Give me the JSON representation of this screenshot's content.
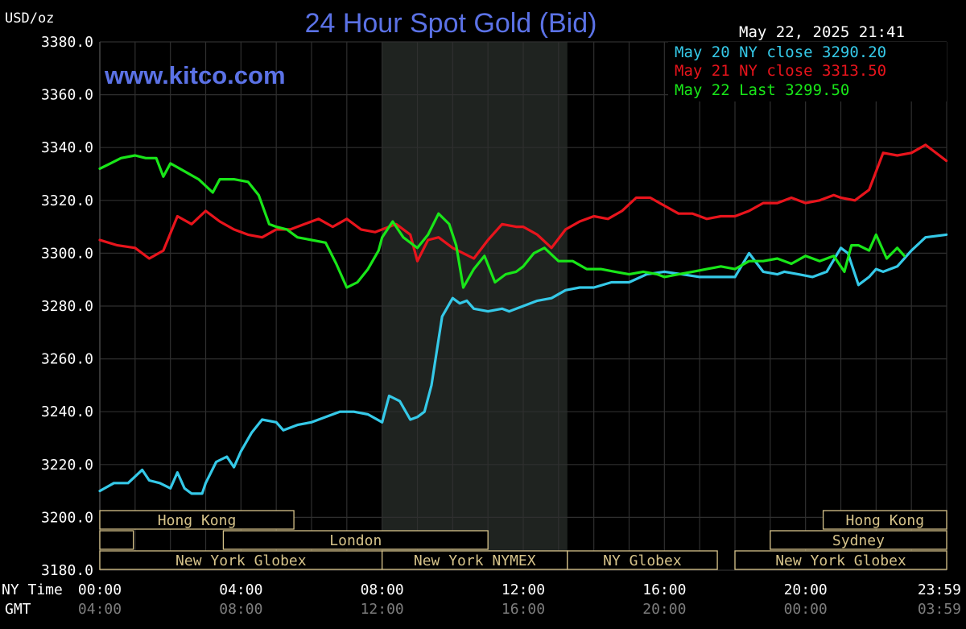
{
  "header": {
    "title": "24 Hour Spot Gold (Bid)",
    "unit": "USD/oz",
    "watermark": "www.kitco.com",
    "timestamp": "May 22, 2025 21:41"
  },
  "legend": {
    "placement": "top-right",
    "items": [
      {
        "text": "May 20 NY close 3290.20",
        "color": "#35c9e8"
      },
      {
        "text": "May 21 NY close 3313.50",
        "color": "#e8141c"
      },
      {
        "text": "May 22 Last 3299.50",
        "color": "#19e619"
      }
    ]
  },
  "axis": {
    "ny_time_label": "NY Time",
    "gmt_label": "GMT",
    "ny_ticks": [
      "00:00",
      "04:00",
      "08:00",
      "12:00",
      "16:00",
      "20:00",
      "23:59"
    ],
    "gmt_ticks": [
      "04:00",
      "08:00",
      "12:00",
      "16:00",
      "20:00",
      "00:00",
      "03:59"
    ],
    "y_ticks": [
      "3180.0",
      "3200.0",
      "3220.0",
      "3240.0",
      "3260.0",
      "3280.0",
      "3300.0",
      "3320.0",
      "3340.0",
      "3360.0",
      "3380.0"
    ]
  },
  "sessions": {
    "row1": [
      "Hong Kong",
      "Hong Kong"
    ],
    "row2": [
      "London",
      "Sydney"
    ],
    "row3": [
      "New York Globex",
      "New York NYMEX",
      "NY Globex",
      "New York Globex"
    ]
  },
  "colors": {
    "background": "#000000",
    "grid": "#2f2f2f",
    "shaded_session": "#1f2320",
    "title": "#5b72e6",
    "session_box": "#d6c38a",
    "text": "#ffffff",
    "gmt_text": "#7d7d7d"
  },
  "chart_data": {
    "type": "line",
    "title": "24 Hour Spot Gold (Bid)",
    "ylabel": "USD/oz",
    "xlabel": "",
    "xlim": [
      0,
      24
    ],
    "ylim": [
      3180,
      3380
    ],
    "grid": true,
    "legend_position": "top-right",
    "shaded_range_hours": [
      8.0,
      13.25
    ],
    "series": [
      {
        "name": "May 20 NY close 3290.20",
        "color": "#35c9e8",
        "x": [
          0.0,
          0.4,
          0.8,
          1.2,
          1.4,
          1.7,
          2.0,
          2.2,
          2.4,
          2.6,
          2.9,
          3.0,
          3.3,
          3.6,
          3.8,
          4.0,
          4.3,
          4.6,
          5.0,
          5.2,
          5.6,
          6.0,
          6.4,
          6.8,
          7.2,
          7.6,
          8.0,
          8.2,
          8.5,
          8.8,
          9.0,
          9.2,
          9.4,
          9.7,
          10.0,
          10.2,
          10.4,
          10.6,
          11.0,
          11.4,
          11.6,
          12.0,
          12.4,
          12.8,
          13.2,
          13.6,
          14.0,
          14.5,
          15.0,
          15.5,
          16.0,
          16.5,
          17.0,
          17.5,
          18.0,
          18.4,
          18.8,
          19.2,
          19.4,
          19.8,
          20.2,
          20.6,
          21.0,
          21.2,
          21.5,
          21.8,
          22.0,
          22.2,
          22.6,
          23.0,
          23.4,
          23.99
        ],
        "values": [
          3210,
          3213,
          3213,
          3218,
          3214,
          3213,
          3211,
          3217,
          3211,
          3209,
          3209,
          3213,
          3221,
          3223,
          3219,
          3225,
          3232,
          3237,
          3236,
          3233,
          3235,
          3236,
          3238,
          3240,
          3240,
          3239,
          3236,
          3246,
          3244,
          3237,
          3238,
          3240,
          3250,
          3276,
          3283,
          3281,
          3282,
          3279,
          3278,
          3279,
          3278,
          3280,
          3282,
          3283,
          3286,
          3287,
          3287,
          3289,
          3289,
          3292,
          3293,
          3292,
          3291,
          3291,
          3291,
          3300,
          3293,
          3292,
          3293,
          3292,
          3291,
          3293,
          3302,
          3300,
          3288,
          3291,
          3294,
          3293,
          3295,
          3301,
          3306,
          3307
        ]
      },
      {
        "name": "May 21 NY close 3313.50",
        "color": "#e8141c",
        "x": [
          0.0,
          0.5,
          1.0,
          1.4,
          1.8,
          2.2,
          2.6,
          3.0,
          3.4,
          3.8,
          4.2,
          4.6,
          5.0,
          5.4,
          5.8,
          6.2,
          6.6,
          7.0,
          7.4,
          7.8,
          8.0,
          8.4,
          8.8,
          9.0,
          9.3,
          9.6,
          10.0,
          10.3,
          10.6,
          11.0,
          11.4,
          11.8,
          12.0,
          12.4,
          12.8,
          13.2,
          13.6,
          14.0,
          14.4,
          14.8,
          15.2,
          15.6,
          16.0,
          16.4,
          16.8,
          17.2,
          17.6,
          18.0,
          18.4,
          18.8,
          19.2,
          19.6,
          20.0,
          20.4,
          20.8,
          21.0,
          21.4,
          21.8,
          22.2,
          22.6,
          23.0,
          23.4,
          23.99
        ],
        "values": [
          3305,
          3303,
          3302,
          3298,
          3301,
          3314,
          3311,
          3316,
          3312,
          3309,
          3307,
          3306,
          3309,
          3309,
          3311,
          3313,
          3310,
          3313,
          3309,
          3308,
          3309,
          3311,
          3307,
          3297,
          3305,
          3306,
          3302,
          3300,
          3298,
          3305,
          3311,
          3310,
          3310,
          3307,
          3302,
          3309,
          3312,
          3314,
          3313,
          3316,
          3321,
          3321,
          3318,
          3315,
          3315,
          3313,
          3314,
          3314,
          3316,
          3319,
          3319,
          3321,
          3319,
          3320,
          3322,
          3321,
          3320,
          3324,
          3338,
          3337,
          3338,
          3341,
          3335
        ]
      },
      {
        "name": "May 22 Last 3299.50",
        "color": "#19e619",
        "x": [
          0.0,
          0.3,
          0.6,
          1.0,
          1.3,
          1.6,
          1.8,
          2.0,
          2.4,
          2.8,
          3.2,
          3.4,
          3.8,
          4.2,
          4.5,
          4.8,
          5.0,
          5.3,
          5.6,
          6.0,
          6.4,
          6.7,
          7.0,
          7.3,
          7.6,
          7.9,
          8.0,
          8.3,
          8.6,
          8.9,
          9.0,
          9.3,
          9.6,
          9.9,
          10.1,
          10.3,
          10.6,
          10.9,
          11.2,
          11.5,
          11.8,
          12.0,
          12.3,
          12.6,
          13.0,
          13.4,
          13.8,
          14.2,
          14.6,
          15.0,
          15.4,
          15.8,
          16.0,
          16.4,
          16.8,
          17.2,
          17.6,
          18.0,
          18.4,
          18.8,
          19.2,
          19.6,
          20.0,
          20.4,
          20.8,
          21.1,
          21.3,
          21.5,
          21.8,
          22.0,
          22.3,
          22.6,
          22.8
        ],
        "values": [
          3332,
          3334,
          3336,
          3337,
          3336,
          3336,
          3329,
          3334,
          3331,
          3328,
          3323,
          3328,
          3328,
          3327,
          3322,
          3311,
          3310,
          3309,
          3306,
          3305,
          3304,
          3296,
          3287,
          3289,
          3294,
          3301,
          3306,
          3312,
          3306,
          3303,
          3302,
          3307,
          3315,
          3311,
          3303,
          3287,
          3294,
          3299,
          3289,
          3292,
          3293,
          3295,
          3300,
          3302,
          3297,
          3297,
          3294,
          3294,
          3293,
          3292,
          3293,
          3292,
          3291,
          3292,
          3293,
          3294,
          3295,
          3294,
          3297,
          3297,
          3298,
          3296,
          3299,
          3297,
          3299,
          3293,
          3303,
          3303,
          3301,
          3307,
          3298,
          3302,
          3299
        ]
      }
    ]
  }
}
